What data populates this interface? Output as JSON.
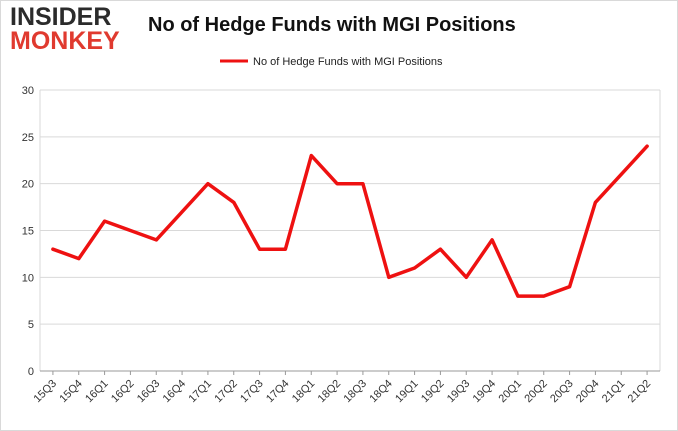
{
  "logo": {
    "line1": "INSIDER",
    "line2": "MONKEY"
  },
  "colors": {
    "series": "#ee1111",
    "grid": "#d9d9d9",
    "axis": "#999999",
    "logo_dark": "#2b2b2b",
    "logo_red": "#e03a2f"
  },
  "chart_data": {
    "type": "line",
    "title": "No of Hedge Funds with MGI Positions",
    "xlabel": "",
    "ylabel": "",
    "ylim": [
      0,
      30
    ],
    "yticks": [
      0,
      5,
      10,
      15,
      20,
      25,
      30
    ],
    "grid": true,
    "legend_position": "top-center",
    "categories": [
      "15Q3",
      "15Q4",
      "16Q1",
      "16Q2",
      "16Q3",
      "16Q4",
      "17Q1",
      "17Q2",
      "17Q3",
      "17Q4",
      "18Q1",
      "18Q2",
      "18Q3",
      "18Q4",
      "19Q1",
      "19Q2",
      "19Q3",
      "19Q4",
      "20Q1",
      "20Q2",
      "20Q3",
      "20Q4",
      "21Q1",
      "21Q2"
    ],
    "series": [
      {
        "name": "No of Hedge Funds with MGI Positions",
        "values": [
          13,
          12,
          16,
          15,
          14,
          17,
          20,
          18,
          13,
          13,
          23,
          20,
          20,
          10,
          11,
          13,
          10,
          14,
          8,
          8,
          9,
          18,
          21,
          24
        ]
      }
    ]
  }
}
